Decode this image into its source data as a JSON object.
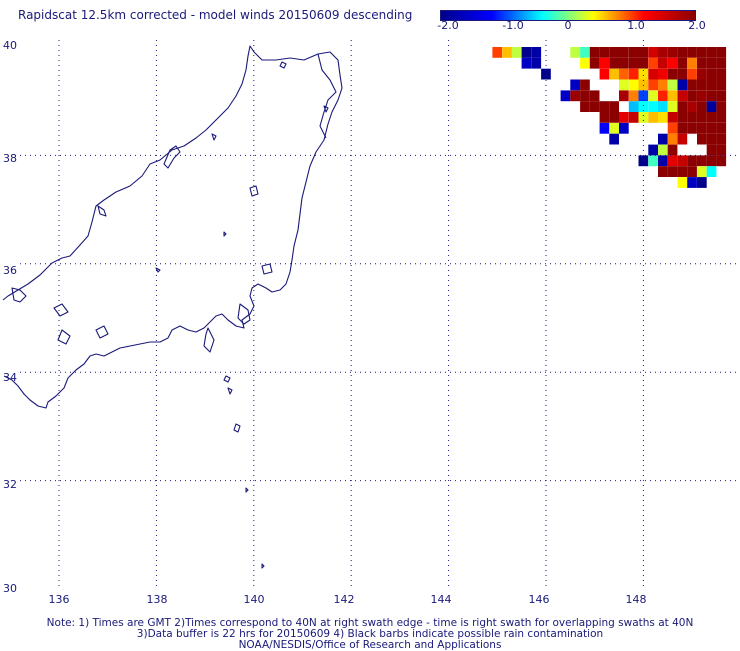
{
  "title": "Rapidscat 12.5km corrected - model winds 20150609 descending",
  "colorbar": {
    "ticks": [
      "-2.0",
      "-1.0",
      "0",
      "1.0",
      "2.0"
    ],
    "stops": [
      "#00008b",
      "#0000ff",
      "#00ffff",
      "#ffff00",
      "#ff0000",
      "#8b0000"
    ]
  },
  "axes": {
    "lat_labels": [
      "40",
      "38",
      "36",
      "34",
      "32",
      "30"
    ],
    "lon_labels": [
      "136",
      "138",
      "140",
      "142",
      "144",
      "146",
      "148"
    ],
    "grid": "dotted"
  },
  "notes": {
    "line1": "Note: 1) Times are GMT 2)Times correspond to 40N at right swath edge - time is right swath for overlapping swaths at 40N",
    "line2": "3)Data buffer is 22 hrs for 20150609 4) Black barbs indicate possible rain contamination",
    "line3": "NOAA/NESDIS/Office of Research and Applications"
  },
  "colors": {
    "coast": "#1a1a7a",
    "grid": "#1a1a7a"
  },
  "chart_data": {
    "type": "heatmap",
    "title": "Rapidscat 12.5km corrected - model winds 20150609 descending",
    "lat_range": [
      30,
      40
    ],
    "lon_range": [
      135,
      150
    ],
    "value_range": [
      -2.0,
      2.0
    ],
    "cells": [
      {
        "lon": 145.0,
        "lat": 39.9,
        "v": 1.0
      },
      {
        "lon": 145.2,
        "lat": 39.9,
        "v": 0.6
      },
      {
        "lon": 145.4,
        "lat": 39.9,
        "v": 0.2
      },
      {
        "lon": 145.6,
        "lat": 39.9,
        "v": -2.0
      },
      {
        "lon": 145.8,
        "lat": 39.9,
        "v": -1.8
      },
      {
        "lon": 145.8,
        "lat": 39.7,
        "v": -1.8
      },
      {
        "lon": 145.6,
        "lat": 39.7,
        "v": -1.6
      },
      {
        "lon": 146.0,
        "lat": 39.5,
        "v": -2.0
      },
      {
        "lon": 146.6,
        "lat": 39.9,
        "v": 0.2
      },
      {
        "lon": 146.8,
        "lat": 39.9,
        "v": -0.2
      },
      {
        "lon": 147.0,
        "lat": 39.9,
        "v": 2.0
      },
      {
        "lon": 147.2,
        "lat": 39.9,
        "v": 2.0
      },
      {
        "lon": 147.4,
        "lat": 39.9,
        "v": 2.0
      },
      {
        "lon": 147.6,
        "lat": 39.9,
        "v": 2.0
      },
      {
        "lon": 147.8,
        "lat": 39.9,
        "v": 2.0
      },
      {
        "lon": 148.0,
        "lat": 39.9,
        "v": 2.0
      },
      {
        "lon": 148.2,
        "lat": 39.9,
        "v": 1.5
      },
      {
        "lon": 148.4,
        "lat": 39.9,
        "v": 1.8
      },
      {
        "lon": 148.6,
        "lat": 39.9,
        "v": 1.9
      },
      {
        "lon": 148.8,
        "lat": 39.9,
        "v": 2.0
      },
      {
        "lon": 149.0,
        "lat": 39.9,
        "v": 2.0
      },
      {
        "lon": 149.2,
        "lat": 39.9,
        "v": 2.0
      },
      {
        "lon": 149.4,
        "lat": 39.9,
        "v": 2.0
      },
      {
        "lon": 149.6,
        "lat": 39.9,
        "v": 2.0
      },
      {
        "lon": 146.8,
        "lat": 39.7,
        "v": 0.4
      },
      {
        "lon": 147.0,
        "lat": 39.7,
        "v": 2.0
      },
      {
        "lon": 147.2,
        "lat": 39.7,
        "v": 1.2
      },
      {
        "lon": 147.4,
        "lat": 39.7,
        "v": 2.0
      },
      {
        "lon": 147.6,
        "lat": 39.7,
        "v": 2.0
      },
      {
        "lon": 147.8,
        "lat": 39.7,
        "v": 2.0
      },
      {
        "lon": 148.0,
        "lat": 39.7,
        "v": 2.0
      },
      {
        "lon": 148.2,
        "lat": 39.7,
        "v": 1.0
      },
      {
        "lon": 148.4,
        "lat": 39.7,
        "v": 1.6
      },
      {
        "lon": 148.6,
        "lat": 39.7,
        "v": 1.2
      },
      {
        "lon": 148.8,
        "lat": 39.7,
        "v": 2.0
      },
      {
        "lon": 149.0,
        "lat": 39.7,
        "v": 0.8
      },
      {
        "lon": 149.2,
        "lat": 39.7,
        "v": 2.0
      },
      {
        "lon": 149.4,
        "lat": 39.7,
        "v": 2.0
      },
      {
        "lon": 149.6,
        "lat": 39.7,
        "v": 2.0
      },
      {
        "lon": 147.2,
        "lat": 39.5,
        "v": 1.2
      },
      {
        "lon": 147.4,
        "lat": 39.5,
        "v": 0.6
      },
      {
        "lon": 147.6,
        "lat": 39.5,
        "v": 0.9
      },
      {
        "lon": 147.8,
        "lat": 39.5,
        "v": 1.1
      },
      {
        "lon": 148.0,
        "lat": 39.5,
        "v": 0.5
      },
      {
        "lon": 148.2,
        "lat": 39.5,
        "v": 1.5
      },
      {
        "lon": 148.4,
        "lat": 39.5,
        "v": 1.3
      },
      {
        "lon": 148.6,
        "lat": 39.5,
        "v": 2.0
      },
      {
        "lon": 148.8,
        "lat": 39.5,
        "v": 2.0
      },
      {
        "lon": 149.0,
        "lat": 39.5,
        "v": 1.0
      },
      {
        "lon": 149.2,
        "lat": 39.5,
        "v": 1.9
      },
      {
        "lon": 149.4,
        "lat": 39.5,
        "v": 2.0
      },
      {
        "lon": 149.6,
        "lat": 39.5,
        "v": 2.0
      },
      {
        "lon": 146.6,
        "lat": 39.3,
        "v": -1.6
      },
      {
        "lon": 146.8,
        "lat": 39.3,
        "v": 2.0
      },
      {
        "lon": 147.6,
        "lat": 39.3,
        "v": 0.3
      },
      {
        "lon": 147.8,
        "lat": 39.3,
        "v": 0.4
      },
      {
        "lon": 148.0,
        "lat": 39.3,
        "v": 0.6
      },
      {
        "lon": 148.2,
        "lat": 39.3,
        "v": 1.0
      },
      {
        "lon": 148.4,
        "lat": 39.3,
        "v": 0.8
      },
      {
        "lon": 148.6,
        "lat": 39.3,
        "v": 0.2
      },
      {
        "lon": 148.8,
        "lat": 39.3,
        "v": -1.8
      },
      {
        "lon": 149.0,
        "lat": 39.3,
        "v": 2.0
      },
      {
        "lon": 149.2,
        "lat": 39.3,
        "v": 2.0
      },
      {
        "lon": 149.4,
        "lat": 39.3,
        "v": 2.0
      },
      {
        "lon": 149.6,
        "lat": 39.3,
        "v": 2.0
      },
      {
        "lon": 146.4,
        "lat": 39.1,
        "v": -1.6
      },
      {
        "lon": 146.6,
        "lat": 39.1,
        "v": 1.9
      },
      {
        "lon": 146.8,
        "lat": 39.1,
        "v": 2.0
      },
      {
        "lon": 147.0,
        "lat": 39.1,
        "v": 2.0
      },
      {
        "lon": 147.6,
        "lat": 39.1,
        "v": 1.8
      },
      {
        "lon": 147.8,
        "lat": 39.1,
        "v": 0.8
      },
      {
        "lon": 148.0,
        "lat": 39.1,
        "v": -1.0
      },
      {
        "lon": 148.2,
        "lat": 39.1,
        "v": 0.3
      },
      {
        "lon": 148.4,
        "lat": 39.1,
        "v": 1.1
      },
      {
        "lon": 148.6,
        "lat": 39.1,
        "v": 0.6
      },
      {
        "lon": 148.8,
        "lat": 39.1,
        "v": 1.6
      },
      {
        "lon": 149.0,
        "lat": 39.1,
        "v": 2.0
      },
      {
        "lon": 149.2,
        "lat": 39.1,
        "v": 1.9
      },
      {
        "lon": 149.4,
        "lat": 39.1,
        "v": 2.0
      },
      {
        "lon": 149.6,
        "lat": 39.1,
        "v": 2.0
      },
      {
        "lon": 146.8,
        "lat": 38.9,
        "v": 2.0
      },
      {
        "lon": 147.0,
        "lat": 38.9,
        "v": 2.0
      },
      {
        "lon": 147.2,
        "lat": 38.9,
        "v": 2.0
      },
      {
        "lon": 147.4,
        "lat": 38.9,
        "v": 2.0
      },
      {
        "lon": 147.8,
        "lat": 38.9,
        "v": -0.6
      },
      {
        "lon": 148.0,
        "lat": 38.9,
        "v": -0.4
      },
      {
        "lon": 148.2,
        "lat": 38.9,
        "v": -0.4
      },
      {
        "lon": 148.4,
        "lat": 38.9,
        "v": -0.5
      },
      {
        "lon": 148.6,
        "lat": 38.9,
        "v": 0.3
      },
      {
        "lon": 148.8,
        "lat": 38.9,
        "v": 2.0
      },
      {
        "lon": 149.0,
        "lat": 38.9,
        "v": 1.8
      },
      {
        "lon": 149.2,
        "lat": 38.9,
        "v": 2.0
      },
      {
        "lon": 149.4,
        "lat": 38.9,
        "v": -1.9
      },
      {
        "lon": 149.6,
        "lat": 38.9,
        "v": 2.0
      },
      {
        "lon": 147.2,
        "lat": 38.7,
        "v": 2.0
      },
      {
        "lon": 147.4,
        "lat": 38.7,
        "v": 2.0
      },
      {
        "lon": 147.6,
        "lat": 38.7,
        "v": 1.4
      },
      {
        "lon": 147.8,
        "lat": 38.7,
        "v": 1.6
      },
      {
        "lon": 148.0,
        "lat": 38.7,
        "v": 0.3
      },
      {
        "lon": 148.2,
        "lat": 38.7,
        "v": 0.6
      },
      {
        "lon": 148.4,
        "lat": 38.7,
        "v": 0.5
      },
      {
        "lon": 148.6,
        "lat": 38.7,
        "v": 1.6
      },
      {
        "lon": 148.8,
        "lat": 38.7,
        "v": 2.0
      },
      {
        "lon": 149.0,
        "lat": 38.7,
        "v": 2.0
      },
      {
        "lon": 149.2,
        "lat": 38.7,
        "v": 2.0
      },
      {
        "lon": 149.4,
        "lat": 38.7,
        "v": 2.0
      },
      {
        "lon": 149.6,
        "lat": 38.7,
        "v": 2.0
      },
      {
        "lon": 147.2,
        "lat": 38.5,
        "v": -1.2
      },
      {
        "lon": 147.4,
        "lat": 38.5,
        "v": 0.3
      },
      {
        "lon": 147.6,
        "lat": 38.5,
        "v": -1.6
      },
      {
        "lon": 148.6,
        "lat": 38.5,
        "v": 1.0
      },
      {
        "lon": 148.8,
        "lat": 38.5,
        "v": 2.0
      },
      {
        "lon": 149.0,
        "lat": 38.5,
        "v": 2.0
      },
      {
        "lon": 149.2,
        "lat": 38.5,
        "v": 2.0
      },
      {
        "lon": 149.4,
        "lat": 38.5,
        "v": 2.0
      },
      {
        "lon": 149.6,
        "lat": 38.5,
        "v": 2.0
      },
      {
        "lon": 147.4,
        "lat": 38.3,
        "v": -1.8
      },
      {
        "lon": 148.4,
        "lat": 38.3,
        "v": -1.8
      },
      {
        "lon": 148.6,
        "lat": 38.3,
        "v": 0.8
      },
      {
        "lon": 148.8,
        "lat": 38.3,
        "v": 1.6
      },
      {
        "lon": 149.2,
        "lat": 38.3,
        "v": 2.0
      },
      {
        "lon": 149.4,
        "lat": 38.3,
        "v": 2.0
      },
      {
        "lon": 149.6,
        "lat": 38.3,
        "v": 2.0
      },
      {
        "lon": 148.2,
        "lat": 38.1,
        "v": -1.8
      },
      {
        "lon": 148.4,
        "lat": 38.1,
        "v": 0.2
      },
      {
        "lon": 148.6,
        "lat": 38.1,
        "v": 2.0
      },
      {
        "lon": 149.4,
        "lat": 38.1,
        "v": 2.0
      },
      {
        "lon": 149.6,
        "lat": 38.1,
        "v": 2.0
      },
      {
        "lon": 148.0,
        "lat": 37.9,
        "v": -2.0
      },
      {
        "lon": 148.2,
        "lat": 37.9,
        "v": -0.2
      },
      {
        "lon": 148.4,
        "lat": 37.9,
        "v": -1.8
      },
      {
        "lon": 148.6,
        "lat": 37.9,
        "v": 1.4
      },
      {
        "lon": 148.8,
        "lat": 37.9,
        "v": 1.6
      },
      {
        "lon": 149.0,
        "lat": 37.9,
        "v": 2.0
      },
      {
        "lon": 149.2,
        "lat": 37.9,
        "v": 2.0
      },
      {
        "lon": 149.4,
        "lat": 37.9,
        "v": 2.0
      },
      {
        "lon": 149.6,
        "lat": 37.9,
        "v": 2.0
      },
      {
        "lon": 148.4,
        "lat": 37.7,
        "v": 2.0
      },
      {
        "lon": 148.6,
        "lat": 37.7,
        "v": 2.0
      },
      {
        "lon": 148.8,
        "lat": 37.7,
        "v": 2.0
      },
      {
        "lon": 149.0,
        "lat": 37.7,
        "v": 2.0
      },
      {
        "lon": 149.2,
        "lat": 37.7,
        "v": 0.3
      },
      {
        "lon": 149.4,
        "lat": 37.7,
        "v": -0.4
      },
      {
        "lon": 148.8,
        "lat": 37.5,
        "v": 0.4
      },
      {
        "lon": 149.0,
        "lat": 37.5,
        "v": -1.6
      },
      {
        "lon": 149.2,
        "lat": 37.5,
        "v": -2.0
      }
    ]
  }
}
